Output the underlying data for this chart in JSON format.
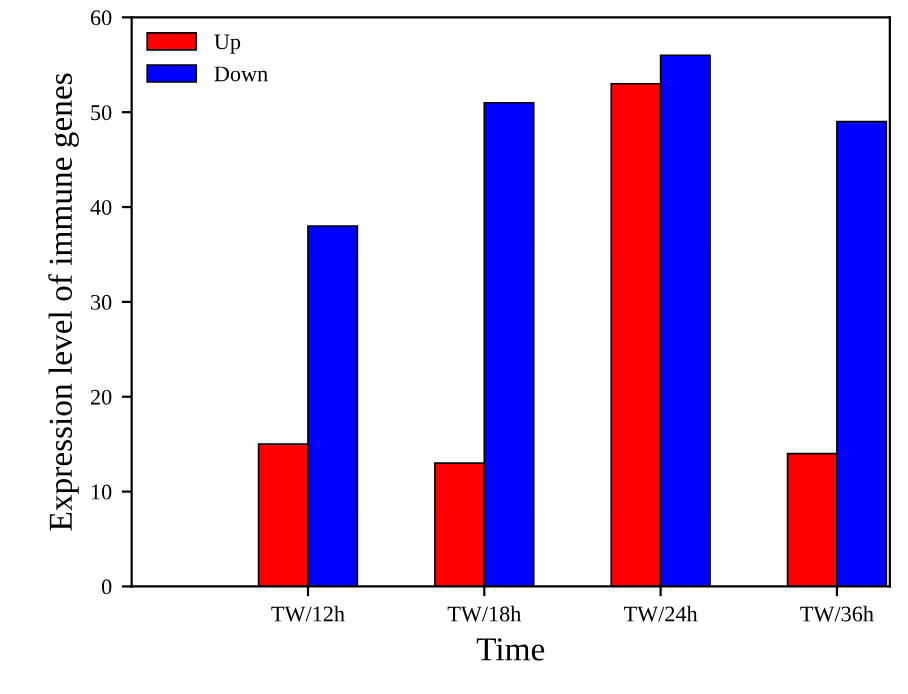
{
  "chart_data": {
    "type": "bar",
    "xlabel": "Time",
    "ylabel": "Expression level of immune genes",
    "categories": [
      "TW/12h",
      "TW/18h",
      "TW/24h",
      "TW/36h"
    ],
    "series": [
      {
        "name": "Up",
        "color": "#ff0000",
        "values": [
          15,
          13,
          53,
          14
        ]
      },
      {
        "name": "Down",
        "color": "#0000ff",
        "values": [
          38,
          51,
          56,
          49
        ]
      }
    ],
    "ylim": [
      0,
      60
    ],
    "yticks": [
      0,
      10,
      20,
      30,
      40,
      50,
      60
    ],
    "grid": false,
    "legend": "top left"
  }
}
